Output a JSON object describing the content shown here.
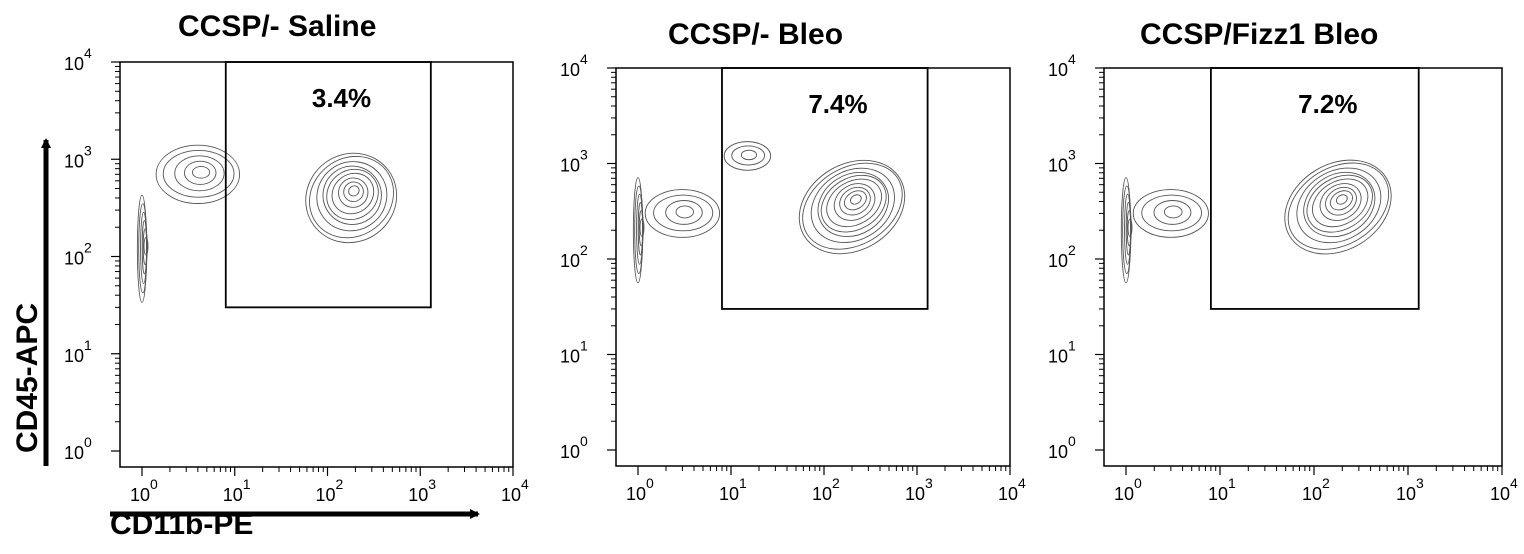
{
  "figure": {
    "x_axis_title": "CD11b-PE",
    "y_axis_title": "CD45-APC"
  },
  "chart_data": [
    {
      "type": "contour",
      "title": "CCSP/- Saline",
      "xscale": "log",
      "yscale": "log",
      "xlim": [
        1,
        10000
      ],
      "ylim": [
        1,
        10000
      ],
      "x_ticks": [
        "10^0",
        "10^1",
        "10^2",
        "10^3",
        "10^4"
      ],
      "y_ticks": [
        "10^0",
        "10^1",
        "10^2",
        "10^3",
        "10^4"
      ],
      "gate": {
        "x": [
          8,
          1300
        ],
        "y": [
          30,
          10000
        ],
        "label": "3.4%"
      },
      "populations": [
        {
          "x": 1,
          "y": 120,
          "xs": 0.05,
          "ys": 0.55,
          "levels": 6
        },
        {
          "x": 4,
          "y": 700,
          "xs": 0.45,
          "ys": 0.3,
          "levels": 5
        },
        {
          "x": 180,
          "y": 400,
          "xs": 0.5,
          "ys": 0.45,
          "rot": 0.75,
          "levels": 9
        }
      ]
    },
    {
      "type": "contour",
      "title": "CCSP/- Bleo",
      "xscale": "log",
      "yscale": "log",
      "xlim": [
        1,
        10000
      ],
      "ylim": [
        1,
        10000
      ],
      "x_ticks": [
        "10^0",
        "10^1",
        "10^2",
        "10^3",
        "10^4"
      ],
      "y_ticks": [
        "10^0",
        "10^1",
        "10^2",
        "10^3",
        "10^4"
      ],
      "gate": {
        "x": [
          8,
          1300
        ],
        "y": [
          30,
          10000
        ],
        "label": "7.4%"
      },
      "populations": [
        {
          "x": 1,
          "y": 200,
          "xs": 0.05,
          "ys": 0.55,
          "levels": 6
        },
        {
          "x": 3,
          "y": 300,
          "xs": 0.4,
          "ys": 0.25,
          "levels": 4
        },
        {
          "x": 15,
          "y": 1200,
          "xs": 0.25,
          "ys": 0.15,
          "levels": 3
        },
        {
          "x": 200,
          "y": 350,
          "xs": 0.6,
          "ys": 0.45,
          "rot": 0.6,
          "levels": 10
        }
      ]
    },
    {
      "type": "contour",
      "title": "CCSP/Fizz1 Bleo",
      "xscale": "log",
      "yscale": "log",
      "xlim": [
        1,
        10000
      ],
      "ylim": [
        1,
        10000
      ],
      "x_ticks": [
        "10^0",
        "10^1",
        "10^2",
        "10^3",
        "10^4"
      ],
      "y_ticks": [
        "10^0",
        "10^1",
        "10^2",
        "10^3",
        "10^4"
      ],
      "gate": {
        "x": [
          8,
          1300
        ],
        "y": [
          30,
          10000
        ],
        "label": "7.2%"
      },
      "populations": [
        {
          "x": 1,
          "y": 200,
          "xs": 0.05,
          "ys": 0.55,
          "levels": 6
        },
        {
          "x": 3,
          "y": 300,
          "xs": 0.4,
          "ys": 0.25,
          "levels": 4
        },
        {
          "x": 180,
          "y": 350,
          "xs": 0.6,
          "ys": 0.45,
          "rot": 0.6,
          "levels": 10
        }
      ]
    }
  ]
}
